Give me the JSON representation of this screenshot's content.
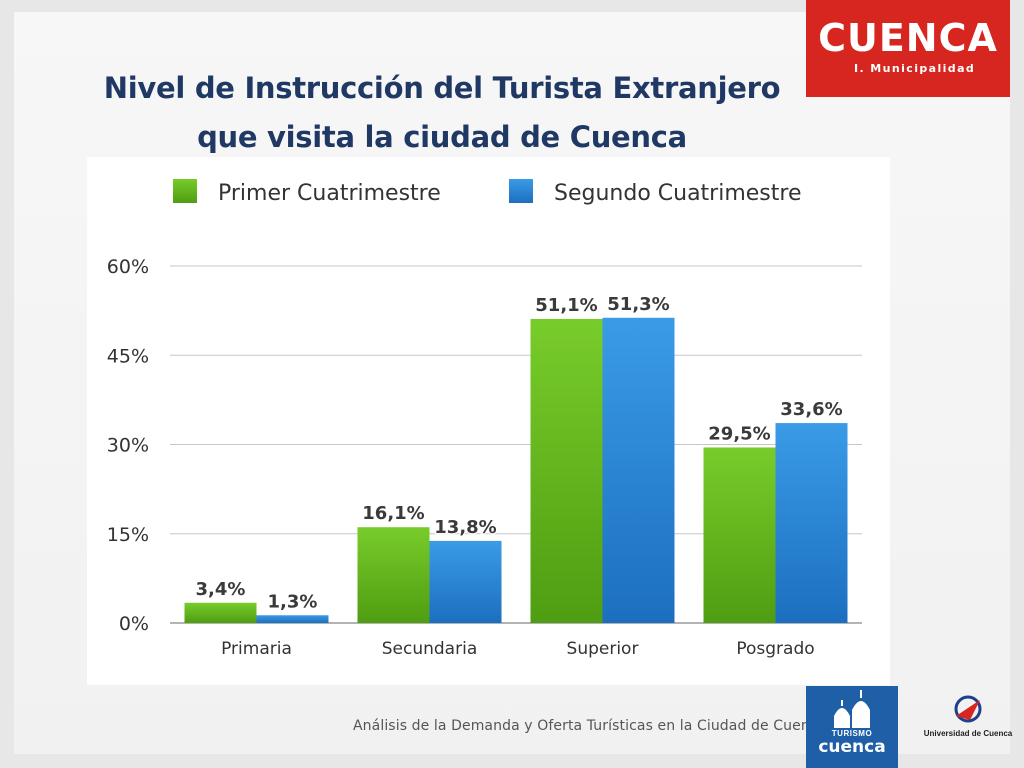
{
  "slide": {
    "title_line1": "Nivel de Instrucción del Turista Extranjero",
    "title_line2": "que visita la ciudad de Cuenca",
    "footer": "Análisis de la Demanda y Oferta Turísticas en la Ciudad de Cuenca"
  },
  "logos": {
    "cuenca_word": "CUENCA",
    "cuenca_sub": "I. Municipalidad",
    "turismo_word": "TURISMO",
    "turismo_city": "cuenca",
    "universidad": "Universidad de Cuenca"
  },
  "colors": {
    "green": "#6cbf24",
    "blue": "#2e8ad6",
    "title": "#1f3864",
    "brand_red": "#d7261f",
    "brand_blue": "#1e5fa8"
  },
  "chart_data": {
    "type": "bar",
    "categories": [
      "Primaria",
      "Secundaria",
      "Superior",
      "Posgrado"
    ],
    "series": [
      {
        "name": "Primer Cuatrimestre",
        "values": [
          3.4,
          16.1,
          51.1,
          29.5
        ],
        "labels": [
          "3,4%",
          "16,1%",
          "51,1%",
          "29,5%"
        ]
      },
      {
        "name": "Segundo Cuatrimestre",
        "values": [
          1.3,
          13.8,
          51.3,
          33.6
        ],
        "labels": [
          "1,3%",
          "13,8%",
          "51,3%",
          "33,6%"
        ]
      }
    ],
    "yticks": [
      "0%",
      "15%",
      "30%",
      "45%",
      "60%"
    ],
    "ylim": [
      0,
      60
    ],
    "grid": true,
    "legend": "top-left"
  }
}
